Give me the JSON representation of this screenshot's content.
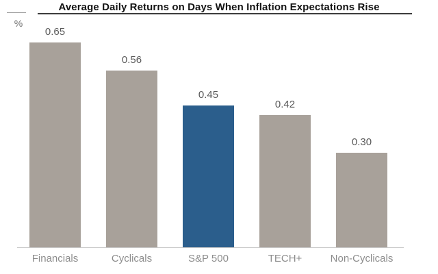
{
  "header": {
    "title": "Average Daily Returns on Days When Inflation Expectations Rise"
  },
  "axis": {
    "unit_label": "%"
  },
  "chart_data": {
    "type": "bar",
    "title": "Average Daily Returns on Days When Inflation Expectations Rise",
    "xlabel": "",
    "ylabel": "%",
    "categories": [
      "Financials",
      "Cyclicals",
      "S&P 500",
      "TECH+",
      "Non-Cyclicals"
    ],
    "values": [
      0.65,
      0.56,
      0.45,
      0.42,
      0.3
    ],
    "value_labels": [
      "0.65",
      "0.56",
      "0.45",
      "0.42",
      "0.30"
    ],
    "bar_colors": [
      "#a8a19a",
      "#a8a19a",
      "#2b5e8c",
      "#a8a19a",
      "#a8a19a"
    ],
    "highlighted_category": "S&P 500",
    "ylim": [
      0,
      0.7
    ],
    "grid": false,
    "legend": false
  },
  "colors": {
    "bar_default": "#a8a19a",
    "bar_highlight": "#2b5e8c",
    "axis_line": "#c9c9c9",
    "title_text": "#141414",
    "value_label_text": "#595959",
    "category_label_text": "#8c8c8c"
  }
}
